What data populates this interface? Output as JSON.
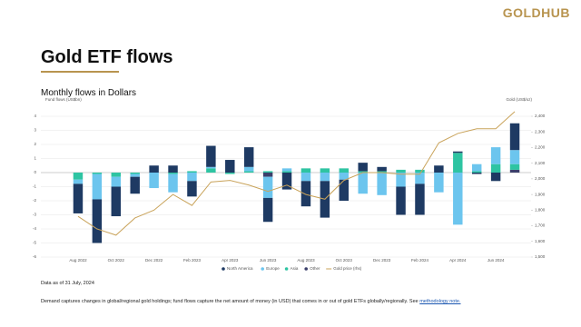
{
  "header": {
    "logo": "GOLDHUB",
    "title": "Gold ETF flows",
    "subtitle": "Monthly flows in Dollars"
  },
  "chart_data": {
    "type": "bar",
    "stacked": true,
    "y_label": "Fund flows (US$bn)",
    "y2_label": "Gold (US$/oz)",
    "categories": [
      "Aug 2022",
      null,
      "Oct 2022",
      null,
      "Dec 2022",
      null,
      "Feb 2023",
      null,
      "Apr 2023",
      null,
      "Jun 2023",
      null,
      "Aug 2023",
      null,
      "Oct 2023",
      null,
      "Dec 2023",
      null,
      "Feb 2024",
      null,
      "Apr 2024",
      null,
      "Jun 2024",
      null
    ],
    "series": [
      {
        "name": "North America",
        "color": "#1e3a63",
        "values": [
          -2.1,
          -3.1,
          -2.1,
          -1.2,
          0.5,
          0.5,
          -1.1,
          1.5,
          0.9,
          1.4,
          -1.7,
          -1.2,
          -1.8,
          -2.6,
          -1.5,
          0.6,
          0.3,
          -2.0,
          -2.2,
          0.5,
          0.1,
          -0.1,
          -0.6,
          1.9
        ]
      },
      {
        "name": "Europe",
        "color": "#6cc5ee",
        "values": [
          -0.3,
          -1.8,
          -0.7,
          -0.2,
          -1.1,
          -1.3,
          -0.6,
          0.1,
          0.0,
          0.3,
          -1.5,
          0.2,
          -0.6,
          -0.6,
          -0.5,
          -1.5,
          -1.6,
          -1.0,
          -0.8,
          -1.4,
          -3.7,
          0.5,
          1.2,
          1.0
        ]
      },
      {
        "name": "Asia",
        "color": "#2ec4a2",
        "values": [
          -0.5,
          -0.1,
          -0.3,
          -0.1,
          0.0,
          -0.1,
          0.1,
          0.3,
          -0.1,
          0.1,
          0.1,
          0.1,
          0.3,
          0.3,
          0.3,
          0.1,
          0.1,
          0.2,
          0.2,
          0.0,
          1.4,
          0.1,
          0.6,
          0.4
        ]
      },
      {
        "name": "Other",
        "color": "#3b3f6b",
        "values": [
          0.0,
          0.0,
          0.0,
          0.0,
          0.0,
          0.0,
          0.0,
          0.0,
          0.0,
          0.0,
          -0.3,
          0.0,
          0.0,
          0.0,
          0.0,
          0.0,
          0.0,
          0.0,
          0.0,
          0.0,
          0.0,
          0.0,
          0.0,
          0.2
        ]
      },
      {
        "name": "Gold price (rhs)",
        "type": "line",
        "axis": "y2",
        "color": "#c9a35a",
        "values": [
          1760,
          1680,
          1640,
          1750,
          1800,
          1900,
          1830,
          1980,
          1990,
          1960,
          1920,
          1960,
          1900,
          1870,
          1990,
          2040,
          2040,
          2030,
          2030,
          2230,
          2290,
          2320,
          2320,
          2430
        ]
      }
    ],
    "ylim": [
      -6,
      5
    ],
    "yticks": [
      -6,
      -5,
      -4,
      -3,
      -2,
      -1,
      0,
      1,
      2,
      3,
      4
    ],
    "y2lim": [
      1500,
      2490
    ],
    "y2ticks": [
      {
        "value": 1500,
        "label": "1,500"
      },
      {
        "value": 1600,
        "label": "1,600"
      },
      {
        "value": 1700,
        "label": "1,700"
      },
      {
        "value": 1800,
        "label": "1,800"
      },
      {
        "value": 1900,
        "label": "1,900"
      },
      {
        "value": 2000,
        "label": "2,000"
      },
      {
        "value": 2100,
        "label": "2,100"
      },
      {
        "value": 2200,
        "label": "2,200"
      },
      {
        "value": 2300,
        "label": "2,300"
      },
      {
        "value": 2400,
        "label": "2,400"
      }
    ],
    "grid": true,
    "legend": "bottom"
  },
  "footer": {
    "date_note": "Data as of 31 July, 2024",
    "description": "Demand captures changes in global/regional gold holdings; fund flows capture the net amount of money (in USD) that comes in or out of gold ETFs globally/regionally. See ",
    "link": "methodology note."
  }
}
